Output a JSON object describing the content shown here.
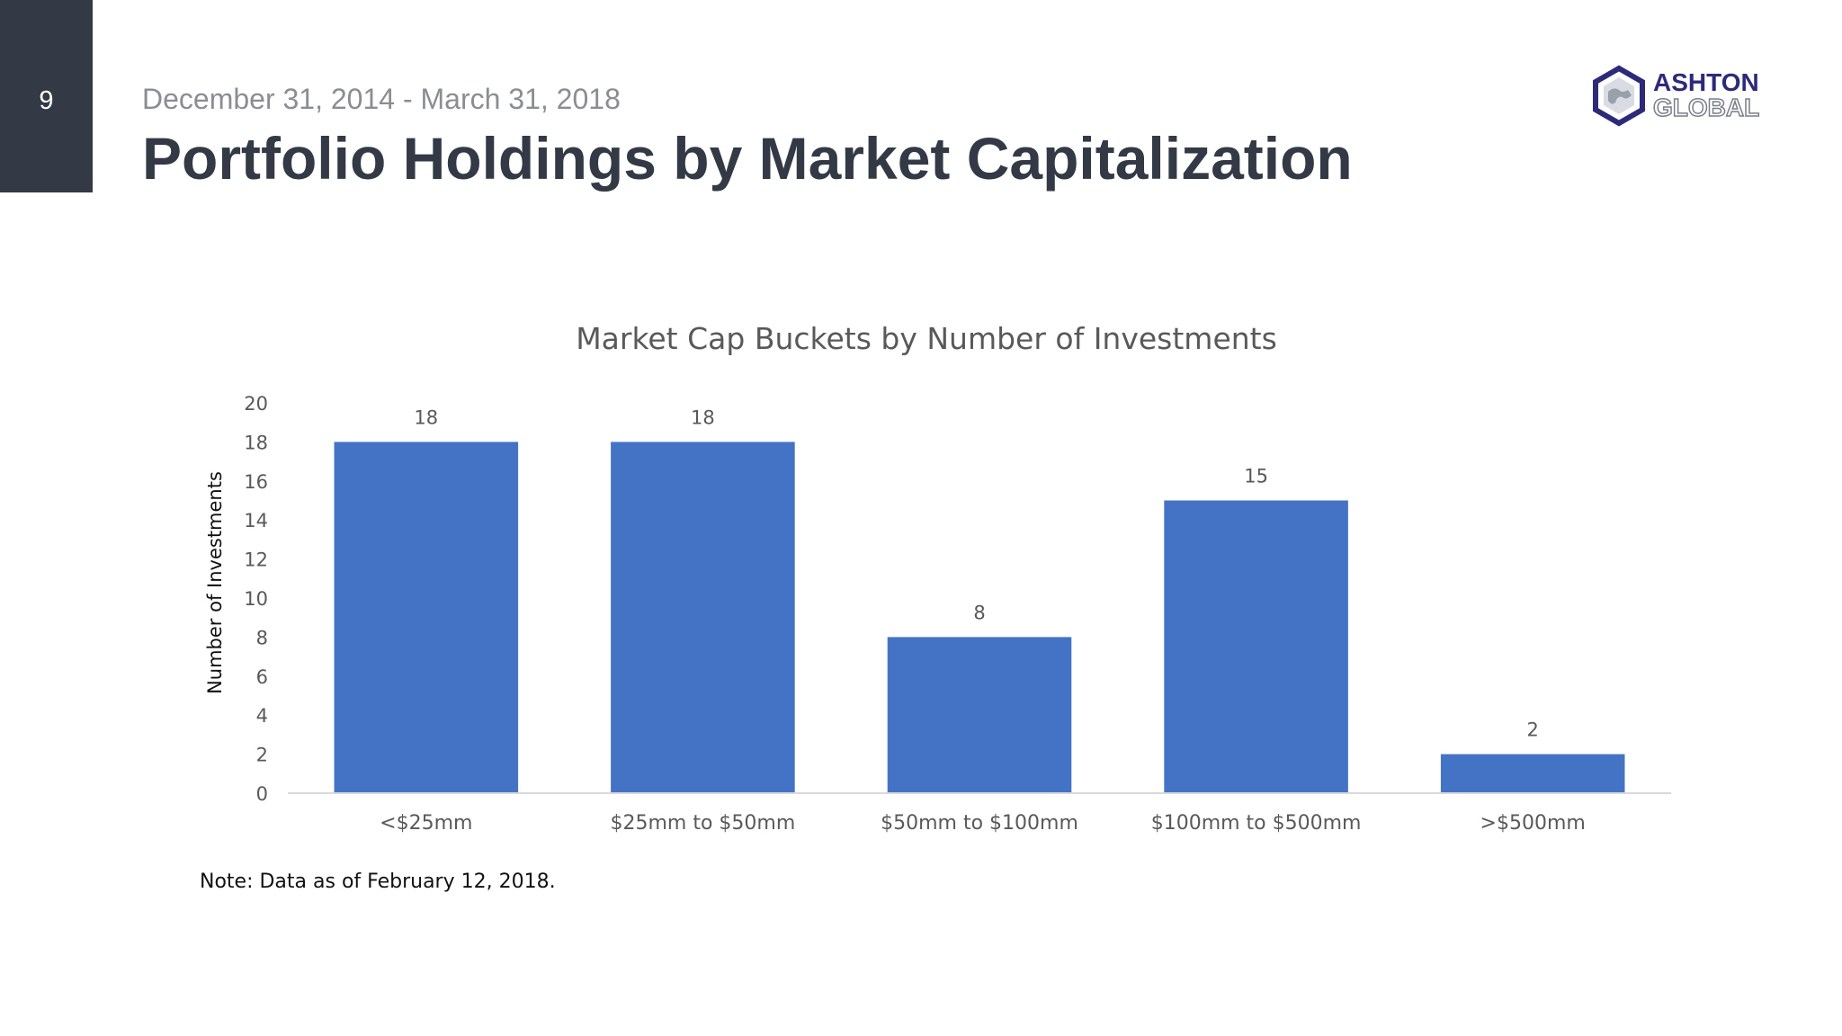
{
  "slide": {
    "page_number": "9",
    "date_range": "December 31, 2014 - March 31, 2018",
    "title": "Portfolio Holdings by Market Capitalization",
    "note": "Note: Data as of February 12, 2018."
  },
  "logo": {
    "line1": "ASHTON",
    "line2": "GLOBAL",
    "icon": "hexagon-globe-icon",
    "colors": {
      "primary": "#2e2a7a",
      "secondary": "#7a7f88"
    }
  },
  "chart_data": {
    "type": "bar",
    "title": "Market Cap Buckets by Number of Investments",
    "xlabel": "",
    "ylabel": "Number of Investments",
    "categories": [
      "<$25mm",
      "$25mm to $50mm",
      "$50mm to $100mm",
      "$100mm to $500mm",
      ">$500mm"
    ],
    "values": [
      18,
      18,
      8,
      15,
      2
    ],
    "ylim": [
      0,
      20
    ],
    "yticks": [
      0,
      2,
      4,
      6,
      8,
      10,
      12,
      14,
      16,
      18,
      20
    ],
    "grid": false,
    "legend": "none",
    "data_labels": true,
    "bar_color": "#4472c4"
  }
}
